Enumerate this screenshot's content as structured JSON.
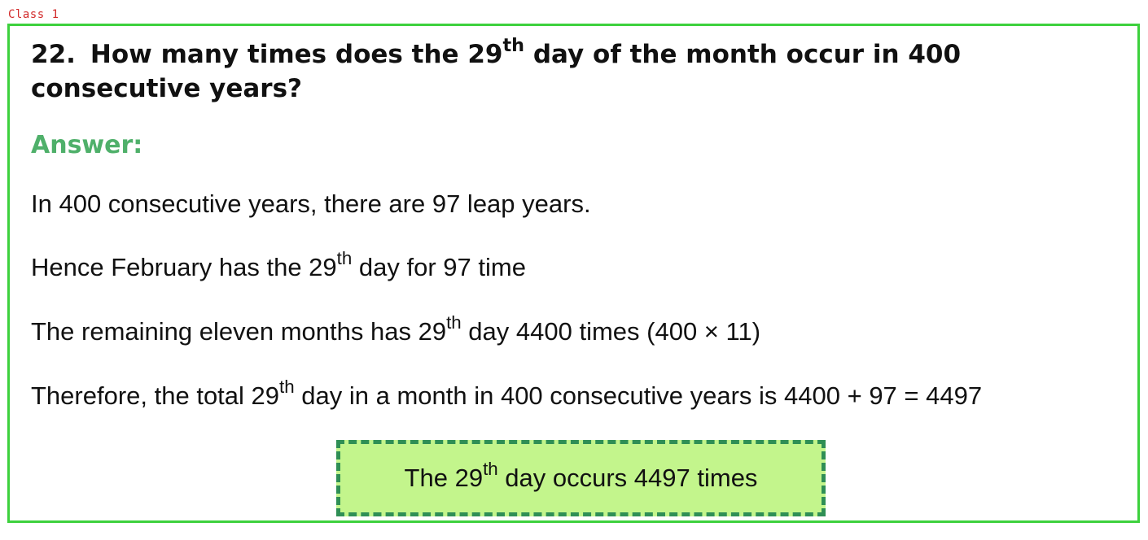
{
  "tag": "Class 1",
  "question": {
    "number": "22.",
    "text_before": "How many times does the 29",
    "sup": "th",
    "text_after": " day of the month occur in 400 consecutive years?"
  },
  "answer_label": "Answer:",
  "lines": [
    {
      "before": "In 400 consecutive years, there are 97 leap years.",
      "sup": "",
      "after": ""
    },
    {
      "before": "Hence February has the 29",
      "sup": "th",
      "after": " day for 97 time"
    },
    {
      "before": "The remaining eleven months has 29",
      "sup": "th",
      "after": " day 4400 times (400 × 11)"
    },
    {
      "before": "Therefore, the total 29",
      "sup": "th",
      "after": " day in a month in 400 consecutive years is 4400 + 97 = 4497"
    }
  ],
  "result": {
    "before": "The 29",
    "sup": "th",
    "after": " day occurs 4497 times"
  },
  "colors": {
    "frame_border": "#3dd13d",
    "tag_text": "#d22a2a",
    "answer_label": "#4fb06a",
    "result_bg": "#c3f58c",
    "result_border": "#2f8f55"
  }
}
